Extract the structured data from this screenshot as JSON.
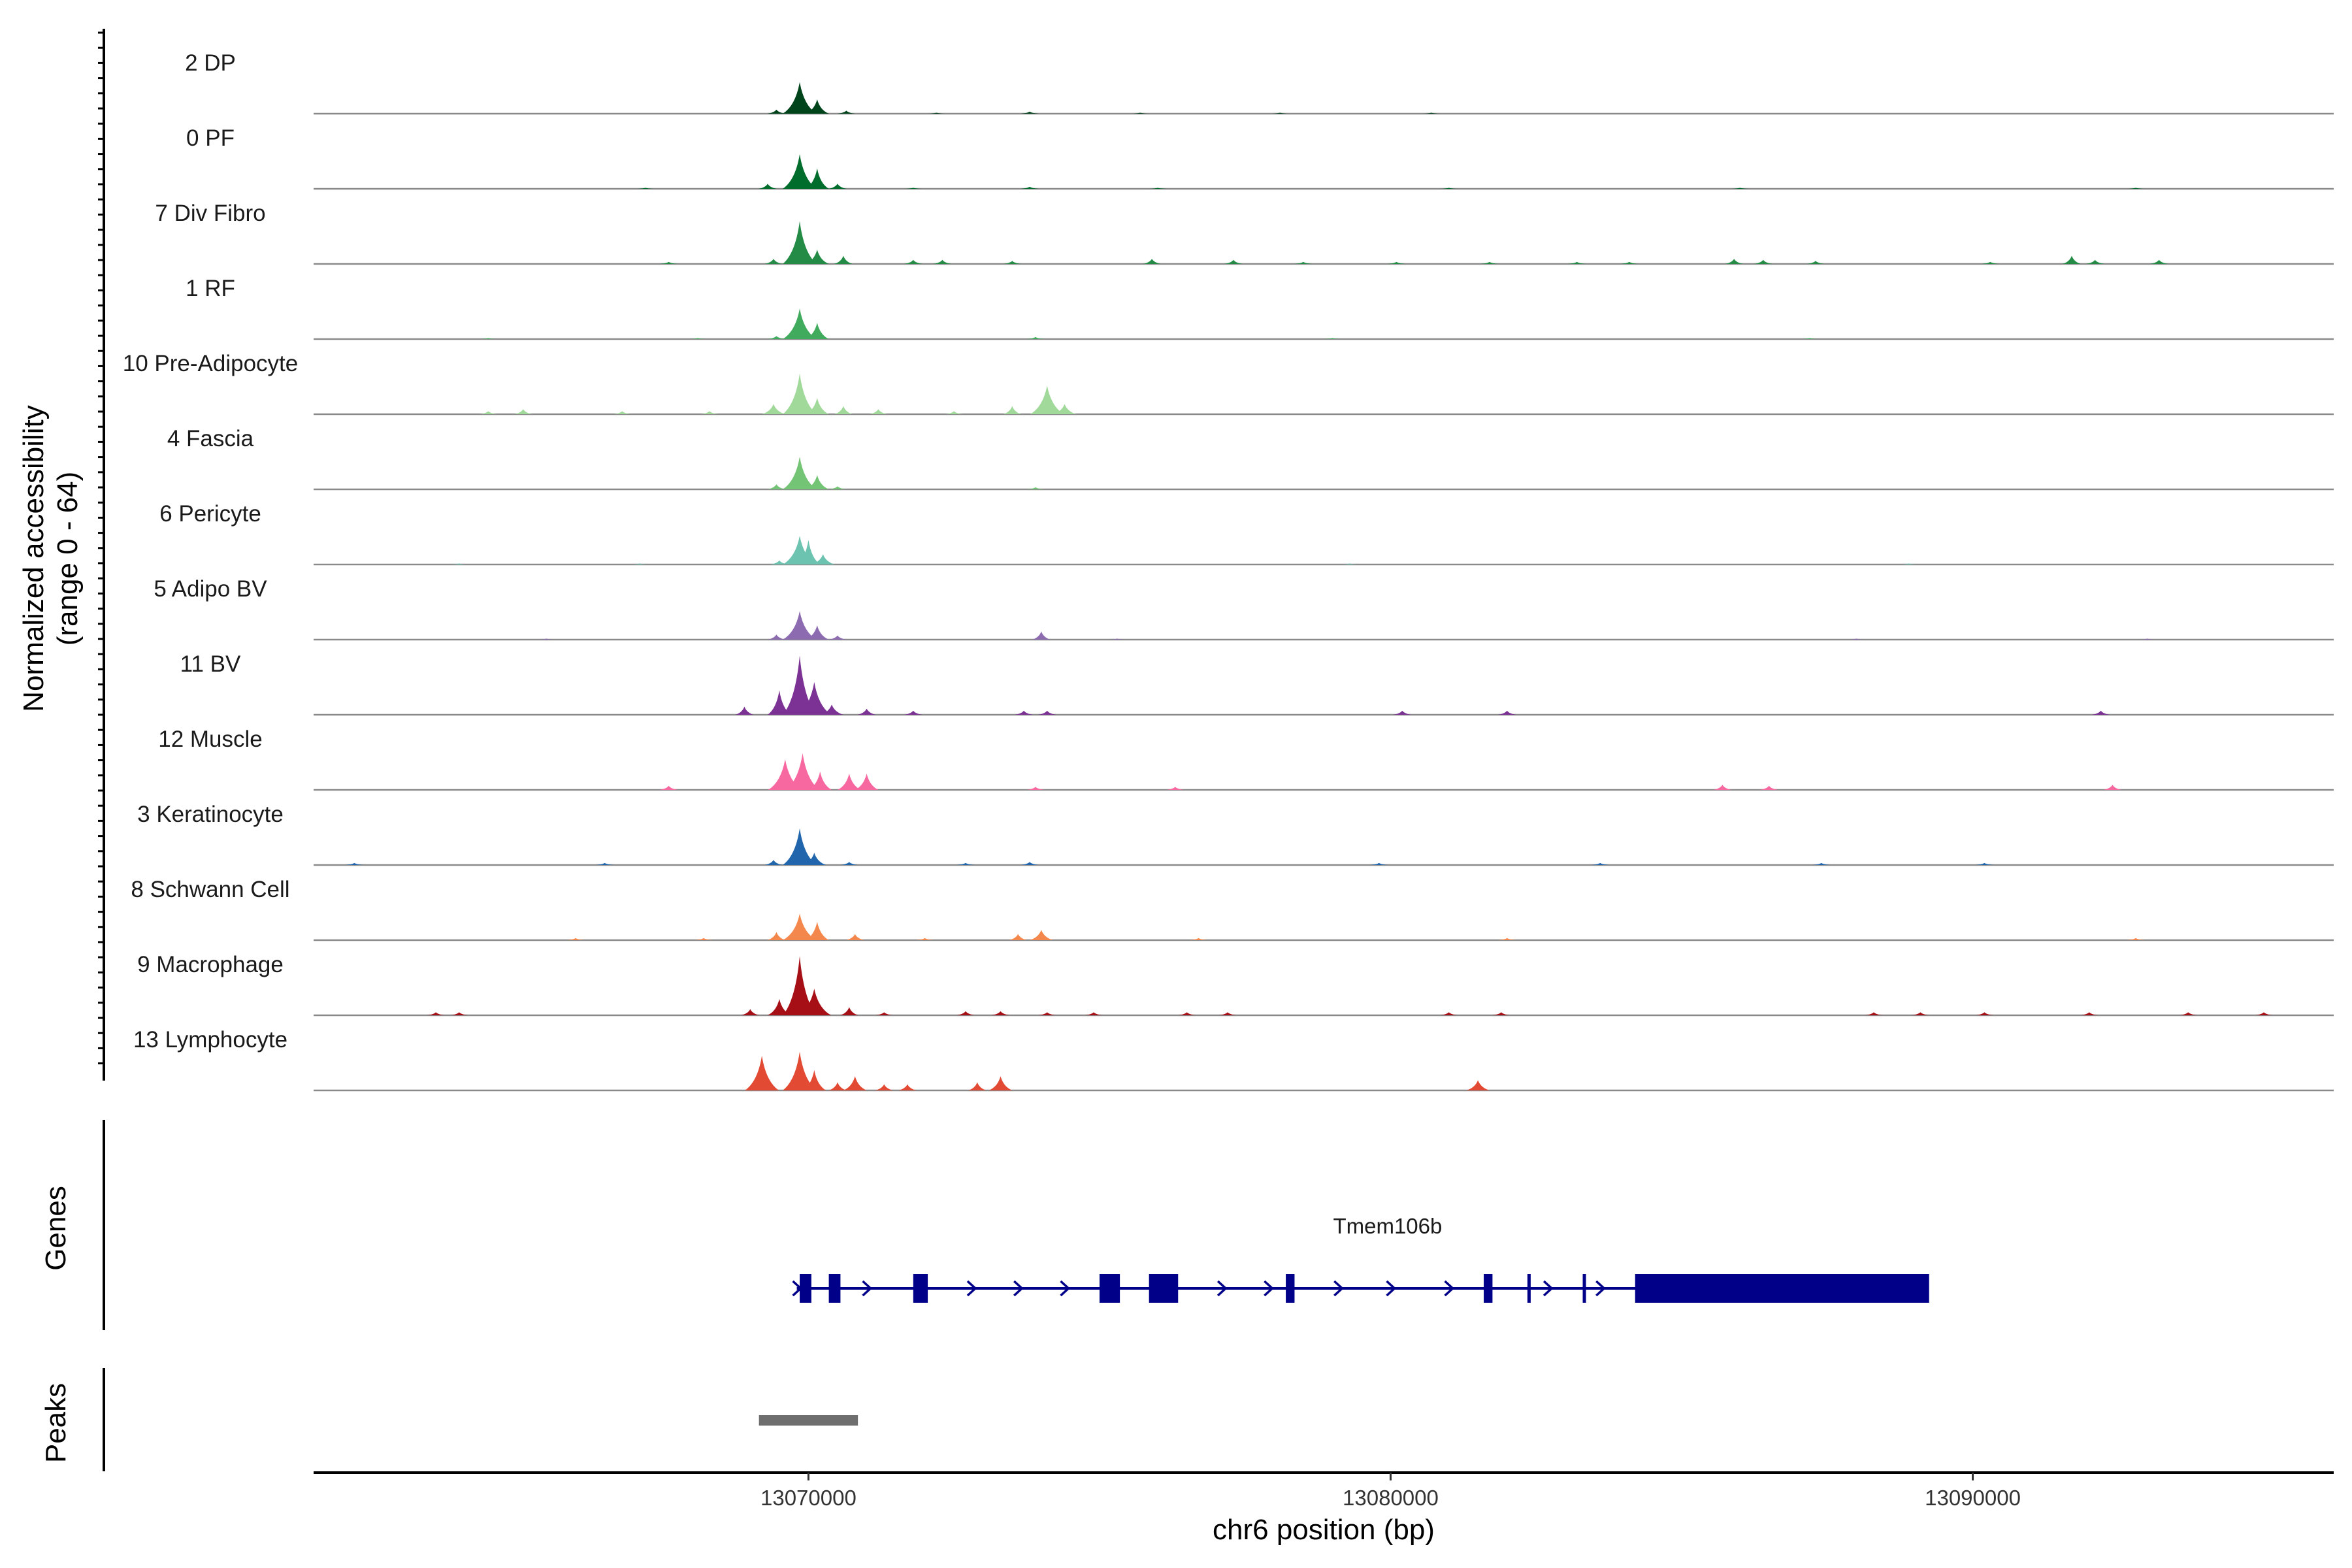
{
  "chart_data": {
    "type": "area",
    "title": "",
    "genome": "chr6",
    "xlabel": "chr6 position (bp)",
    "ylabel_line1": "Normalized accessibility",
    "ylabel_line2": "(range 0 - 64)",
    "xlim": [
      13061500,
      13096200
    ],
    "ylim": [
      0,
      64
    ],
    "x_ticks": [
      13070000,
      13080000,
      13090000
    ],
    "x_tick_labels": [
      "13070000",
      "13080000",
      "13090000"
    ],
    "tracks_label": "Normalized accessibility",
    "genes_label": "Genes",
    "peaks_label": "Peaks",
    "series": [
      {
        "name": "2 DP",
        "color": "#00441b",
        "peaks": [
          [
            13069850,
            31
          ],
          [
            13070150,
            14
          ],
          [
            13069450,
            4
          ],
          [
            13070650,
            3
          ],
          [
            13073800,
            2
          ],
          [
            13072200,
            1
          ],
          [
            13075700,
            1
          ],
          [
            13078100,
            1
          ],
          [
            13080700,
            1
          ]
        ]
      },
      {
        "name": "0 PF",
        "color": "#006d2c",
        "peaks": [
          [
            13069850,
            34
          ],
          [
            13070150,
            20
          ],
          [
            13069300,
            5
          ],
          [
            13070500,
            5
          ],
          [
            13067200,
            1
          ],
          [
            13071800,
            1
          ],
          [
            13073800,
            2
          ],
          [
            13076000,
            1
          ],
          [
            13081000,
            1
          ],
          [
            13086000,
            1
          ],
          [
            13092800,
            1
          ]
        ]
      },
      {
        "name": "7 Div Fibro",
        "color": "#238b45",
        "peaks": [
          [
            13069850,
            42
          ],
          [
            13070150,
            14
          ],
          [
            13069400,
            5
          ],
          [
            13070600,
            8
          ],
          [
            13071800,
            4
          ],
          [
            13072300,
            4
          ],
          [
            13067600,
            2
          ],
          [
            13073500,
            3
          ],
          [
            13075900,
            5
          ],
          [
            13077300,
            4
          ],
          [
            13078500,
            2
          ],
          [
            13080100,
            2
          ],
          [
            13081700,
            2
          ],
          [
            13083200,
            2
          ],
          [
            13084100,
            2
          ],
          [
            13085900,
            5
          ],
          [
            13086400,
            4
          ],
          [
            13087300,
            3
          ],
          [
            13090300,
            2
          ],
          [
            13091700,
            8
          ],
          [
            13092100,
            4
          ],
          [
            13093200,
            4
          ]
        ]
      },
      {
        "name": "1 RF",
        "color": "#41ab5d",
        "peaks": [
          [
            13069850,
            30
          ],
          [
            13070150,
            16
          ],
          [
            13069450,
            3
          ],
          [
            13064500,
            1
          ],
          [
            13068100,
            1
          ],
          [
            13073900,
            2
          ],
          [
            13079000,
            1
          ],
          [
            13087200,
            1
          ]
        ]
      },
      {
        "name": "10 Pre-Adipocyte",
        "color": "#a1d99b",
        "peaks": [
          [
            13069850,
            40
          ],
          [
            13070150,
            16
          ],
          [
            13069400,
            10
          ],
          [
            13070600,
            8
          ],
          [
            13071200,
            5
          ],
          [
            13072500,
            3
          ],
          [
            13073500,
            8
          ],
          [
            13074100,
            28
          ],
          [
            13074400,
            10
          ],
          [
            13064500,
            3
          ],
          [
            13065100,
            5
          ],
          [
            13066800,
            3
          ],
          [
            13068300,
            3
          ]
        ]
      },
      {
        "name": "4 Fascia",
        "color": "#74c476",
        "peaks": [
          [
            13069850,
            32
          ],
          [
            13070150,
            14
          ],
          [
            13069450,
            5
          ],
          [
            13070500,
            3
          ],
          [
            13073900,
            2
          ]
        ]
      },
      {
        "name": "6 Pericyte",
        "color": "#6cc3b0",
        "peaks": [
          [
            13069850,
            28
          ],
          [
            13070000,
            24
          ],
          [
            13070250,
            10
          ],
          [
            13069500,
            4
          ],
          [
            13064000,
            1
          ],
          [
            13067100,
            1
          ],
          [
            13079300,
            1
          ],
          [
            13088900,
            1
          ]
        ]
      },
      {
        "name": "5 Adipo BV",
        "color": "#8c6bb1",
        "peaks": [
          [
            13069850,
            28
          ],
          [
            13070150,
            14
          ],
          [
            13069450,
            5
          ],
          [
            13070500,
            4
          ],
          [
            13074000,
            8
          ],
          [
            13065500,
            1
          ],
          [
            13075300,
            1
          ],
          [
            13088000,
            1
          ],
          [
            13093000,
            1
          ]
        ]
      },
      {
        "name": "11 BV",
        "color": "#7b3294",
        "peaks": [
          [
            13069850,
            58
          ],
          [
            13070100,
            32
          ],
          [
            13069500,
            24
          ],
          [
            13070400,
            10
          ],
          [
            13068900,
            8
          ],
          [
            13071000,
            6
          ],
          [
            13071800,
            4
          ],
          [
            13073700,
            4
          ],
          [
            13074100,
            4
          ],
          [
            13080200,
            4
          ],
          [
            13082000,
            4
          ],
          [
            13092200,
            4
          ]
        ]
      },
      {
        "name": "12 Muscle",
        "color": "#f768a1",
        "peaks": [
          [
            13069600,
            30
          ],
          [
            13069900,
            36
          ],
          [
            13070200,
            18
          ],
          [
            13070700,
            16
          ],
          [
            13071000,
            16
          ],
          [
            13067600,
            4
          ],
          [
            13073900,
            3
          ],
          [
            13076300,
            3
          ],
          [
            13085700,
            5
          ],
          [
            13086500,
            4
          ],
          [
            13092400,
            5
          ]
        ]
      },
      {
        "name": "3 Keratinocyte",
        "color": "#2166ac",
        "peaks": [
          [
            13069850,
            36
          ],
          [
            13070100,
            12
          ],
          [
            13069400,
            5
          ],
          [
            13070700,
            3
          ],
          [
            13066500,
            2
          ],
          [
            13062200,
            2
          ],
          [
            13073800,
            3
          ],
          [
            13072700,
            2
          ],
          [
            13079800,
            2
          ],
          [
            13083600,
            2
          ],
          [
            13087400,
            2
          ],
          [
            13090200,
            2
          ]
        ]
      },
      {
        "name": "8 Schwann Cell",
        "color": "#f4874b",
        "peaks": [
          [
            13069850,
            26
          ],
          [
            13070150,
            18
          ],
          [
            13069450,
            8
          ],
          [
            13070800,
            6
          ],
          [
            13074000,
            10
          ],
          [
            13073600,
            6
          ],
          [
            13066000,
            2
          ],
          [
            13068200,
            2
          ],
          [
            13072000,
            2
          ],
          [
            13076700,
            2
          ],
          [
            13082000,
            2
          ],
          [
            13092800,
            2
          ]
        ]
      },
      {
        "name": "9 Macrophage",
        "color": "#a50f15",
        "peaks": [
          [
            13069850,
            58
          ],
          [
            13070100,
            26
          ],
          [
            13069500,
            16
          ],
          [
            13069000,
            6
          ],
          [
            13070700,
            8
          ],
          [
            13071300,
            3
          ],
          [
            13063600,
            3
          ],
          [
            13064000,
            3
          ],
          [
            13072700,
            4
          ],
          [
            13073300,
            4
          ],
          [
            13074100,
            3
          ],
          [
            13074900,
            3
          ],
          [
            13076500,
            3
          ],
          [
            13077200,
            3
          ],
          [
            13081000,
            3
          ],
          [
            13081900,
            3
          ],
          [
            13088300,
            3
          ],
          [
            13089100,
            3
          ],
          [
            13090200,
            3
          ],
          [
            13092000,
            3
          ],
          [
            13093700,
            3
          ],
          [
            13095000,
            3
          ]
        ]
      },
      {
        "name": "13 Lymphocyte",
        "color": "#e34a33",
        "peaks": [
          [
            13069200,
            34
          ],
          [
            13069850,
            38
          ],
          [
            13070100,
            20
          ],
          [
            13070800,
            14
          ],
          [
            13070500,
            8
          ],
          [
            13071300,
            6
          ],
          [
            13071700,
            6
          ],
          [
            13072900,
            8
          ],
          [
            13073300,
            14
          ],
          [
            13081500,
            10
          ]
        ]
      }
    ],
    "gene": {
      "name": "Tmem106b",
      "strand": "+",
      "start": 13069800,
      "end": 13089200,
      "exons": [
        [
          13069850,
          13070050
        ],
        [
          13070350,
          13070550
        ],
        [
          13071800,
          13072050
        ],
        [
          13075000,
          13075350
        ],
        [
          13075850,
          13076350
        ],
        [
          13078200,
          13078350
        ],
        [
          13081600,
          13081750
        ],
        [
          13082350,
          13082400
        ],
        [
          13083300,
          13083350
        ],
        [
          13084200,
          13089250
        ]
      ],
      "arrows": [
        13069800,
        13071000,
        13072800,
        13073600,
        13074400,
        13077100,
        13077900,
        13079100,
        13080000,
        13081000,
        13082700,
        13083600
      ]
    },
    "peaks_track": [
      [
        13069150,
        13070850
      ]
    ],
    "peaks_color": "#6e6e6e",
    "gene_color": "#000088"
  }
}
